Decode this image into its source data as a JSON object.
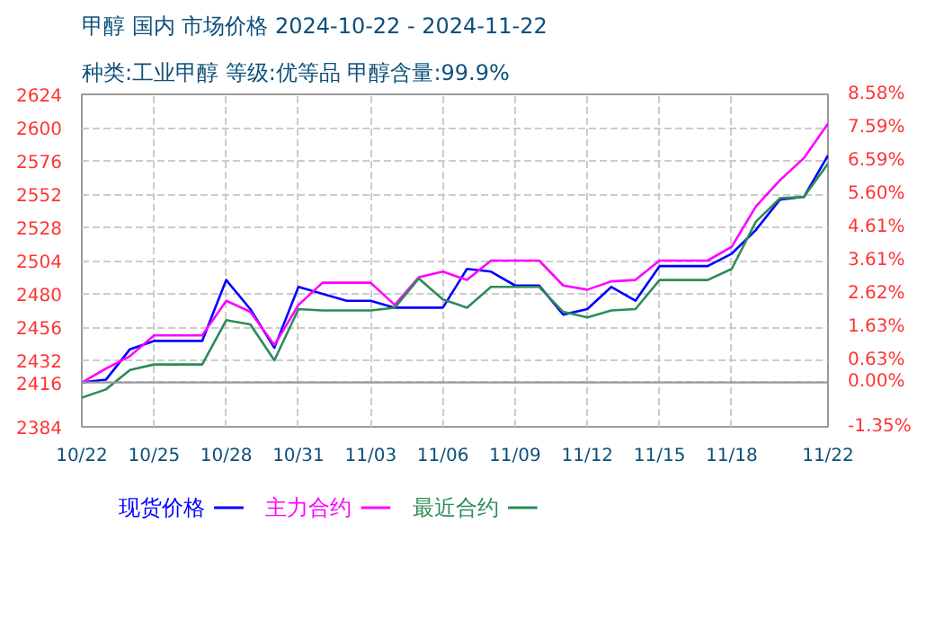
{
  "chart_data": {
    "type": "line",
    "title": "甲醇 国内 市场价格 2024-10-22 - 2024-11-22",
    "subtitle": "种类:工业甲醇 等级:优等品 甲醇含量:99.9%",
    "x": [
      "2024-10-22",
      "2024-10-23",
      "2024-10-24",
      "2024-10-25",
      "2024-10-26",
      "2024-10-27",
      "2024-10-28",
      "2024-10-29",
      "2024-10-30",
      "2024-10-31",
      "2024-11-01",
      "2024-11-02",
      "2024-11-03",
      "2024-11-04",
      "2024-11-05",
      "2024-11-06",
      "2024-11-07",
      "2024-11-08",
      "2024-11-09",
      "2024-11-10",
      "2024-11-11",
      "2024-11-12",
      "2024-11-13",
      "2024-11-14",
      "2024-11-15",
      "2024-11-16",
      "2024-11-17",
      "2024-11-18",
      "2024-11-19",
      "2024-11-20",
      "2024-11-21",
      "2024-11-22"
    ],
    "series": [
      {
        "name": "现货价格",
        "color": "#0000ff",
        "values": [
          2416,
          2418,
          2440,
          2446,
          2446,
          2446,
          2490,
          2469,
          2441,
          2485,
          2480,
          2475,
          2475,
          2470,
          2470,
          2470,
          2498,
          2496,
          2486,
          2486,
          2465,
          2469,
          2485,
          2475,
          2500,
          2500,
          2500,
          2509,
          2526,
          2548,
          2550,
          2580
        ]
      },
      {
        "name": "主力合约",
        "color": "#ff00ff",
        "values": [
          2416,
          2426,
          2435,
          2450,
          2450,
          2450,
          2475,
          2467,
          2443,
          2472,
          2488,
          2488,
          2488,
          2472,
          2492,
          2496,
          2490,
          2504,
          2504,
          2504,
          2486,
          2483,
          2489,
          2490,
          2504,
          2504,
          2504,
          2514,
          2543,
          2562,
          2578,
          2603
        ]
      },
      {
        "name": "最近合约",
        "color": "#2e8b57",
        "values": [
          2405,
          2411,
          2425,
          2429,
          2429,
          2429,
          2461,
          2458,
          2432,
          2469,
          2468,
          2468,
          2468,
          2470,
          2491,
          2476,
          2470,
          2485,
          2485,
          2485,
          2467,
          2463,
          2468,
          2469,
          2490,
          2490,
          2490,
          2498,
          2532,
          2549,
          2550,
          2574
        ]
      }
    ],
    "xlim": [
      "2024-10-22",
      "2024-11-22"
    ],
    "xticks": [
      {
        "value": "2024-10-22",
        "label": "10/22"
      },
      {
        "value": "2024-10-25",
        "label": "10/25"
      },
      {
        "value": "2024-10-28",
        "label": "10/28"
      },
      {
        "value": "2024-10-31",
        "label": "10/31"
      },
      {
        "value": "2024-11-03",
        "label": "11/03"
      },
      {
        "value": "2024-11-06",
        "label": "11/06"
      },
      {
        "value": "2024-11-09",
        "label": "11/09"
      },
      {
        "value": "2024-11-12",
        "label": "11/12"
      },
      {
        "value": "2024-11-15",
        "label": "11/15"
      },
      {
        "value": "2024-11-18",
        "label": "11/18"
      },
      {
        "value": "2024-11-22",
        "label": "11/22"
      }
    ],
    "ylim": [
      2384,
      2624
    ],
    "yticks": [
      2384,
      2416,
      2432,
      2456,
      2480,
      2504,
      2528,
      2552,
      2576,
      2600,
      2624
    ],
    "y2lim": [
      -1.35,
      8.58
    ],
    "y2ticks": [
      {
        "value": -1.35,
        "label": "-1.35%"
      },
      {
        "value": 0.0,
        "label": "0.00%"
      },
      {
        "value": 0.63,
        "label": "0.63%"
      },
      {
        "value": 1.63,
        "label": "1.63%"
      },
      {
        "value": 2.62,
        "label": "2.62%"
      },
      {
        "value": 3.61,
        "label": "3.61%"
      },
      {
        "value": 4.61,
        "label": "4.61%"
      },
      {
        "value": 5.6,
        "label": "5.60%"
      },
      {
        "value": 6.59,
        "label": "6.59%"
      },
      {
        "value": 7.59,
        "label": "7.59%"
      },
      {
        "value": 8.58,
        "label": "8.58%"
      }
    ],
    "ref_lines": [
      {
        "axis": "y",
        "value": 2416,
        "label": null,
        "color": "#999999",
        "line_style": "solid"
      }
    ],
    "grid": true,
    "legend": "bottom",
    "marker": "none",
    "line_style": "solid"
  }
}
